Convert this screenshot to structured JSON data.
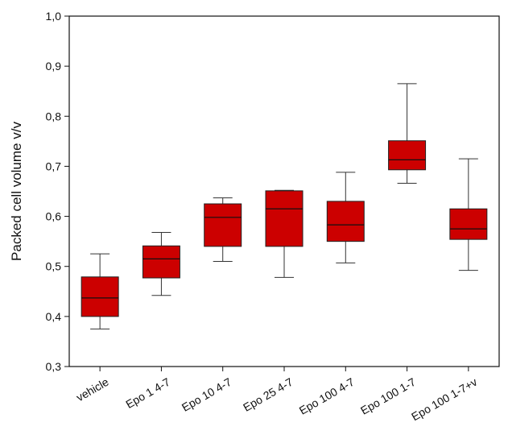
{
  "chart_data": {
    "type": "box",
    "title": "",
    "xlabel": "",
    "ylabel": "Packed cell volume v/v",
    "ylim": [
      0.3,
      1.0
    ],
    "yticks": [
      "0,3",
      "0,4",
      "0,5",
      "0,6",
      "0,7",
      "0,8",
      "0,9",
      "1,0"
    ],
    "ytick_values": [
      0.3,
      0.4,
      0.5,
      0.6,
      0.7,
      0.8,
      0.9,
      1.0
    ],
    "grid": false,
    "box_color": "#cc0000",
    "categories": [
      "vehicle",
      "Epo 1 4-7",
      "Epo 10 4-7",
      "Epo 25 4-7",
      "Epo 100 4-7",
      "Epo 100 1-7",
      "Epo 100 1-7+v"
    ],
    "boxes": [
      {
        "whisker_low": 0.375,
        "q1": 0.4,
        "median": 0.437,
        "q3": 0.479,
        "whisker_high": 0.525
      },
      {
        "whisker_low": 0.442,
        "q1": 0.477,
        "median": 0.515,
        "q3": 0.541,
        "whisker_high": 0.568
      },
      {
        "whisker_low": 0.51,
        "q1": 0.54,
        "median": 0.598,
        "q3": 0.625,
        "whisker_high": 0.637
      },
      {
        "whisker_low": 0.478,
        "q1": 0.54,
        "median": 0.615,
        "q3": 0.651,
        "whisker_high": 0.652
      },
      {
        "whisker_low": 0.507,
        "q1": 0.55,
        "median": 0.583,
        "q3": 0.63,
        "whisker_high": 0.688
      },
      {
        "whisker_low": 0.666,
        "q1": 0.693,
        "median": 0.713,
        "q3": 0.751,
        "whisker_high": 0.865
      },
      {
        "whisker_low": 0.492,
        "q1": 0.554,
        "median": 0.575,
        "q3": 0.615,
        "whisker_high": 0.715
      }
    ]
  }
}
